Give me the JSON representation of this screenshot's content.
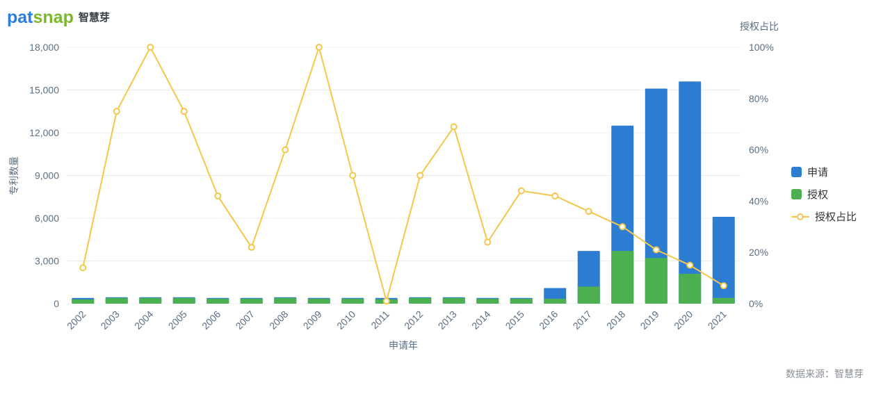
{
  "logo": {
    "part1": "pat",
    "part2": "snap",
    "suffix": "智慧芽"
  },
  "source": "数据来源：智慧芽",
  "colors": {
    "apply_blue": "#2d7dd2",
    "grant_green": "#4caf50",
    "ratio_yellow": "#f6c64b",
    "grid": "#e9edf3",
    "axis_label": "#5a6e84",
    "legend_text": "#333333"
  },
  "chart_data": {
    "type": "bar+line",
    "title": "",
    "xlabel": "申请年",
    "ylabel": "专利数量",
    "y2label": "授权占比",
    "categories": [
      "2002",
      "2003",
      "2004",
      "2005",
      "2006",
      "2007",
      "2008",
      "2009",
      "2010",
      "2011",
      "2012",
      "2013",
      "2014",
      "2015",
      "2016",
      "2017",
      "2018",
      "2019",
      "2020",
      "2021"
    ],
    "series": [
      {
        "name": "申请",
        "type": "bar",
        "axis": "left",
        "color": "#2d7dd2",
        "values": [
          400,
          450,
          450,
          450,
          400,
          400,
          450,
          400,
          400,
          400,
          450,
          450,
          400,
          400,
          1100,
          3700,
          12500,
          15100,
          15600,
          6100
        ]
      },
      {
        "name": "授权",
        "type": "bar",
        "axis": "left",
        "color": "#4caf50",
        "values": [
          300,
          400,
          400,
          400,
          350,
          350,
          400,
          350,
          350,
          300,
          400,
          400,
          350,
          350,
          350,
          1200,
          3700,
          3200,
          2100,
          400
        ]
      },
      {
        "name": "授权占比",
        "type": "line",
        "axis": "right",
        "color": "#f6c64b",
        "values": [
          14,
          75,
          100,
          75,
          42,
          22,
          60,
          100,
          50,
          1,
          50,
          69,
          24,
          44,
          42,
          36,
          30,
          21,
          15,
          7
        ]
      }
    ],
    "ylim": [
      0,
      18000
    ],
    "y_ticks": [
      0,
      3000,
      6000,
      9000,
      12000,
      15000,
      18000
    ],
    "y2lim": [
      0,
      100
    ],
    "y2_ticks": [
      0,
      20,
      40,
      60,
      80,
      100
    ],
    "legend_position": "right",
    "grid": true
  }
}
